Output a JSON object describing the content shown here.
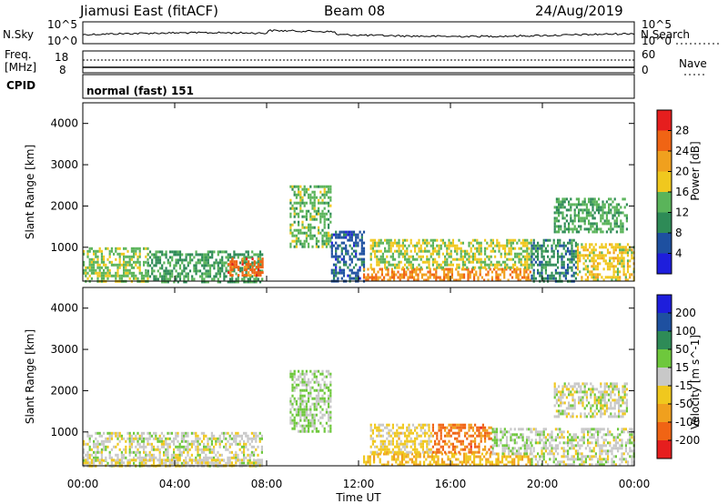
{
  "header": {
    "station": "Jiamusi East (fitACF)",
    "beam": "Beam 08",
    "date": "24/Aug/2019"
  },
  "noise_panel": {
    "left_label": "N.Sky",
    "right_label": "N.Search",
    "ticks_left": [
      "10^5",
      "10^0"
    ],
    "ticks_right": [
      "10^5",
      "10^0"
    ]
  },
  "freq_panel": {
    "left_label_1": "Freq.",
    "left_label_2": "[MHz]",
    "right_label": "Nave",
    "ticks_left": [
      "18",
      "8"
    ],
    "ticks_right": [
      "60",
      "0"
    ]
  },
  "cpid": {
    "label": "CPID",
    "mode": "normal (fast) 151"
  },
  "chart_data": [
    {
      "type": "heatmap",
      "title": "",
      "ylabel": "Slant Range [km]",
      "yticks": [
        "1000",
        "2000",
        "3000",
        "4000"
      ],
      "ylim": [
        180,
        4500
      ],
      "xlim_hours": [
        0,
        24
      ],
      "colorbar_label": "Power [dB]",
      "colorbar_ticks": [
        "4",
        "8",
        "12",
        "16",
        "20",
        "24",
        "28"
      ],
      "colorbar_range": [
        0,
        30
      ],
      "colors": [
        "#1e1edc",
        "#1e50a0",
        "#2e8b57",
        "#5ab45a",
        "#f0c81e",
        "#f0a01e",
        "#f06414",
        "#e61e1e"
      ],
      "regions": [
        {
          "x": [
            0.0,
            2.8
          ],
          "y": [
            180,
            1000
          ],
          "value": 14
        },
        {
          "x": [
            2.8,
            7.8
          ],
          "y": [
            180,
            920
          ],
          "value": 11
        },
        {
          "x": [
            6.3,
            7.8
          ],
          "y": [
            300,
            750
          ],
          "value": 24
        },
        {
          "x": [
            9.0,
            10.8
          ],
          "y": [
            1000,
            2500
          ],
          "value": 13
        },
        {
          "x": [
            10.8,
            12.2
          ],
          "y": [
            180,
            1400
          ],
          "value": 6
        },
        {
          "x": [
            12.2,
            19.5
          ],
          "y": [
            180,
            500
          ],
          "value": 22
        },
        {
          "x": [
            12.5,
            19.5
          ],
          "y": [
            500,
            1200
          ],
          "value": 15
        },
        {
          "x": [
            19.5,
            21.5
          ],
          "y": [
            180,
            1200
          ],
          "value": 9
        },
        {
          "x": [
            21.5,
            24.0
          ],
          "y": [
            180,
            1100
          ],
          "value": 17
        },
        {
          "x": [
            20.5,
            23.7
          ],
          "y": [
            1400,
            2200
          ],
          "value": 12
        }
      ]
    },
    {
      "type": "heatmap",
      "title": "",
      "ylabel": "Slant Range [km]",
      "yticks": [
        "1000",
        "2000",
        "3000",
        "4000"
      ],
      "ylim": [
        180,
        4500
      ],
      "xlim_hours": [
        0,
        24
      ],
      "colorbar_label": "Velocity [m s^-1]",
      "colorbar_ticks": [
        "200",
        "100",
        "50",
        "15",
        "-15",
        "-50",
        "-100",
        "-200"
      ],
      "colorbar_range": [
        -250,
        250
      ],
      "colors": [
        "#e61e1e",
        "#f06414",
        "#f0a01e",
        "#f0c81e",
        "#c8c8c8",
        "#6ec83c",
        "#2e8b57",
        "#1e50a0",
        "#1e1edc"
      ],
      "regions": [
        {
          "x": [
            0.0,
            7.8
          ],
          "y": [
            180,
            1000
          ],
          "value": 0
        },
        {
          "x": [
            0.0,
            7.8
          ],
          "y": [
            180,
            350
          ],
          "value": -30
        },
        {
          "x": [
            9.0,
            10.8
          ],
          "y": [
            1000,
            2500
          ],
          "value": 30
        },
        {
          "x": [
            12.2,
            19.5
          ],
          "y": [
            180,
            500
          ],
          "value": -80
        },
        {
          "x": [
            15.2,
            17.8
          ],
          "y": [
            500,
            1200
          ],
          "value": -150
        },
        {
          "x": [
            12.5,
            15.2
          ],
          "y": [
            500,
            1200
          ],
          "value": -40
        },
        {
          "x": [
            17.8,
            19.5
          ],
          "y": [
            500,
            1100
          ],
          "value": 25
        },
        {
          "x": [
            19.5,
            24.0
          ],
          "y": [
            180,
            1100
          ],
          "value": 0
        },
        {
          "x": [
            20.5,
            23.7
          ],
          "y": [
            1400,
            2200
          ],
          "value": 0
        }
      ]
    }
  ],
  "x_axis": {
    "label": "Time UT",
    "ticks": [
      "00:00",
      "04:00",
      "08:00",
      "12:00",
      "16:00",
      "20:00",
      "00:00"
    ]
  }
}
